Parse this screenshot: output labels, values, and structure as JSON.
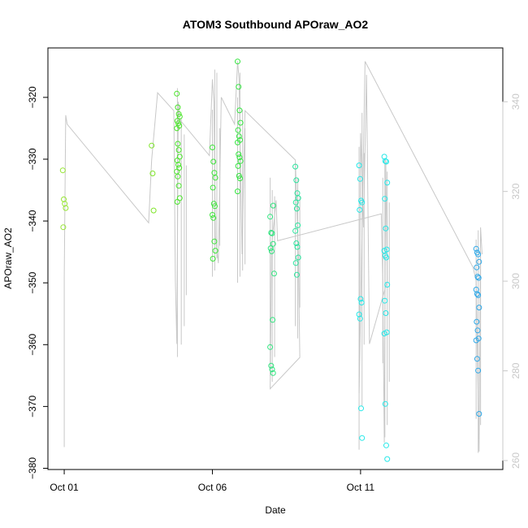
{
  "chart_data": {
    "type": "scatter",
    "title": "ATOM3 Southbound APOraw_AO2",
    "xlabel": "Date",
    "ylabel": "APOraw_AO2",
    "x_ticks": [
      {
        "day": 1,
        "label": "Oct 01"
      },
      {
        "day": 6,
        "label": "Oct 06"
      },
      {
        "day": 11,
        "label": "Oct 11"
      }
    ],
    "xlim_days": [
      0.45,
      15.8
    ],
    "y_left": {
      "lim": [
        -380.2,
        -312
      ],
      "ticks": [
        -380,
        -370,
        -360,
        -350,
        -340,
        -330,
        -320
      ]
    },
    "y_right": {
      "lim": [
        258,
        352
      ],
      "ticks": [
        260,
        280,
        300,
        320,
        340
      ]
    },
    "grid": false,
    "legend": "none",
    "colors": {
      "line": "#c8c8c8",
      "axis": "#000000",
      "right_axis": "#c8c8c8",
      "points": [
        "#96e632",
        "#7fe52a",
        "#4ae52a",
        "#2fe550",
        "#2fe57e",
        "#2be59e",
        "#1ee6c8",
        "#26e8e8",
        "#2ea8e8"
      ]
    },
    "point_groups": [
      {
        "x": 1.0,
        "color": "#96e632",
        "y": [
          -331.8,
          -336.5,
          -337.2,
          -337.9,
          -341.0
        ]
      },
      {
        "x": 4.0,
        "color": "#7fe52a",
        "y": [
          -327.8,
          -332.3,
          -338.3
        ]
      },
      {
        "x": 4.85,
        "color": "#4ae52a",
        "y": [
          -319.4,
          -321.6,
          -322.7,
          -323.1,
          -323.8,
          -324.2,
          -324.6,
          -325.0,
          -327.5,
          -328.5,
          -329.6,
          -330.2,
          -330.9,
          -331.4,
          -332.0,
          -332.8,
          -334.3,
          -336.3,
          -336.9
        ]
      },
      {
        "x": 6.05,
        "color": "#3ee53a",
        "y": [
          -328.1,
          -330.4,
          -332.2,
          -333.0,
          -334.6,
          -337.2,
          -337.6,
          -339.0,
          -339.5,
          -343.3,
          -344.8,
          -346.1
        ]
      },
      {
        "x": 6.9,
        "color": "#35e540",
        "y": [
          -314.2,
          -318.3,
          -322.1,
          -324.1,
          -325.3,
          -326.3,
          -326.9,
          -327.3,
          -329.2,
          -329.7,
          -330.3,
          -331.1,
          -332.7,
          -333.1,
          -335.2
        ]
      },
      {
        "x": 8.0,
        "color": "#2fe57e",
        "y": [
          -339.3,
          -341.9,
          -342.0,
          -343.7,
          -344.4,
          -344.9,
          -356.0,
          -360.4,
          -363.4,
          -364.0,
          -364.6
        ]
      },
      {
        "x": 8.1,
        "color": "#2fe57e",
        "y": [
          -337.5,
          -348.5
        ]
      },
      {
        "x": 8.85,
        "color": "#2be59e",
        "y": [
          -331.2,
          -333.4,
          -335.5,
          -336.3,
          -337.0,
          -338.0,
          -340.7,
          -341.6,
          -343.6,
          -344.2,
          -345.9,
          -346.8,
          -348.7
        ]
      },
      {
        "x": 11.0,
        "color": "#26e8e8",
        "y": [
          -331.0,
          -333.2,
          -336.7,
          -337.0,
          -338.2,
          -352.6,
          -353.2,
          -355.1,
          -355.8,
          -370.3,
          -375.1
        ]
      },
      {
        "x": 11.85,
        "color": "#26e8e8",
        "y": [
          -329.6,
          -330.3,
          -330.4,
          -333.8,
          -336.4,
          -341.2,
          -344.6,
          -344.8,
          -345.6,
          -345.9,
          -350.3,
          -352.9,
          -354.9,
          -358.0,
          -358.2,
          -369.6,
          -376.3,
          -378.5
        ]
      },
      {
        "x": 14.95,
        "color": "#2ea8e8",
        "y": [
          -344.5,
          -345.1,
          -345.4,
          -346.6,
          -347.5,
          -349.0,
          -349.2,
          -351.1,
          -351.8,
          -352.0,
          -354.0,
          -356.3,
          -357.7,
          -359.0,
          -359.3,
          -362.3,
          -364.2,
          -371.2
        ]
      }
    ],
    "line_right_axis_path": [
      {
        "x": 1.0,
        "y": 263
      },
      {
        "x": 1.0,
        "y": 301
      },
      {
        "x": 1.05,
        "y": 337
      },
      {
        "x": 1.1,
        "y": 335
      },
      {
        "x": 3.85,
        "y": 313
      },
      {
        "x": 3.95,
        "y": 327
      },
      {
        "x": 4.15,
        "y": 342
      },
      {
        "x": 4.7,
        "y": 338
      },
      {
        "x": 4.75,
        "y": 300
      },
      {
        "x": 4.8,
        "y": 286
      },
      {
        "x": 4.85,
        "y": 340
      },
      {
        "x": 4.9,
        "y": 336
      },
      {
        "x": 5.9,
        "y": 328
      },
      {
        "x": 6.0,
        "y": 345
      },
      {
        "x": 6.05,
        "y": 340
      },
      {
        "x": 6.1,
        "y": 310
      },
      {
        "x": 6.2,
        "y": 304
      },
      {
        "x": 6.3,
        "y": 341
      },
      {
        "x": 6.75,
        "y": 335
      },
      {
        "x": 6.85,
        "y": 349
      },
      {
        "x": 6.9,
        "y": 345
      },
      {
        "x": 7.0,
        "y": 306
      },
      {
        "x": 7.1,
        "y": 338
      },
      {
        "x": 8.8,
        "y": 327
      },
      {
        "x": 8.9,
        "y": 306
      },
      {
        "x": 8.95,
        "y": 283
      },
      {
        "x": 7.95,
        "y": 276
      },
      {
        "x": 8.0,
        "y": 308
      },
      {
        "x": 8.15,
        "y": 318
      },
      {
        "x": 8.2,
        "y": 309
      },
      {
        "x": 11.7,
        "y": 315
      },
      {
        "x": 11.75,
        "y": 300
      },
      {
        "x": 11.8,
        "y": 264
      },
      {
        "x": 11.85,
        "y": 327
      },
      {
        "x": 11.9,
        "y": 300
      },
      {
        "x": 11.3,
        "y": 286
      },
      {
        "x": 11.2,
        "y": 346
      },
      {
        "x": 11.1,
        "y": 312
      },
      {
        "x": 11.0,
        "y": 333
      },
      {
        "x": 10.95,
        "y": 275
      },
      {
        "x": 11.15,
        "y": 349
      },
      {
        "x": 14.8,
        "y": 303
      },
      {
        "x": 14.9,
        "y": 300
      },
      {
        "x": 15.0,
        "y": 262
      },
      {
        "x": 15.05,
        "y": 312
      },
      {
        "x": 15.1,
        "y": 306
      }
    ],
    "line_spike_ranges": [
      {
        "x": 4.82,
        "y": [
          -362.0,
          -318.5
        ]
      },
      {
        "x": 4.95,
        "y": [
          -360.0,
          -323.5
        ]
      },
      {
        "x": 5.05,
        "y": [
          -357.0,
          -326.0
        ]
      },
      {
        "x": 5.12,
        "y": [
          -352.0,
          -331.0
        ]
      },
      {
        "x": 6.0,
        "y": [
          -349.0,
          -322.0
        ]
      },
      {
        "x": 6.08,
        "y": [
          -348.0,
          -315.5
        ]
      },
      {
        "x": 6.15,
        "y": [
          -346.0,
          -316.0
        ]
      },
      {
        "x": 6.25,
        "y": [
          -344.0,
          -325.0
        ]
      },
      {
        "x": 6.85,
        "y": [
          -350.0,
          -320.0
        ]
      },
      {
        "x": 6.93,
        "y": [
          -349.0,
          -316.0
        ]
      },
      {
        "x": 7.02,
        "y": [
          -348.0,
          -322.0
        ]
      },
      {
        "x": 7.1,
        "y": [
          -347.0,
          -325.0
        ]
      },
      {
        "x": 7.95,
        "y": [
          -365.0,
          -333.0
        ]
      },
      {
        "x": 8.02,
        "y": [
          -366.0,
          -335.0
        ]
      },
      {
        "x": 8.1,
        "y": [
          -362.0,
          -336.0
        ]
      },
      {
        "x": 8.8,
        "y": [
          -357.0,
          -330.5
        ]
      },
      {
        "x": 8.88,
        "y": [
          -359.0,
          -333.0
        ]
      },
      {
        "x": 8.95,
        "y": [
          -354.0,
          -336.0
        ]
      },
      {
        "x": 10.95,
        "y": [
          -377.0,
          -328.0
        ]
      },
      {
        "x": 11.05,
        "y": [
          -370.0,
          -322.5
        ]
      },
      {
        "x": 11.12,
        "y": [
          -360.0,
          -329.0
        ]
      },
      {
        "x": 11.75,
        "y": [
          -363.0,
          -333.0
        ]
      },
      {
        "x": 11.82,
        "y": [
          -375.0,
          -330.0
        ]
      },
      {
        "x": 11.9,
        "y": [
          -373.0,
          -332.0
        ]
      },
      {
        "x": 11.97,
        "y": [
          -366.0,
          -337.0
        ]
      },
      {
        "x": 14.9,
        "y": [
          -372.0,
          -343.0
        ]
      },
      {
        "x": 14.97,
        "y": [
          -377.5,
          -341.5
        ]
      },
      {
        "x": 15.05,
        "y": [
          -373.0,
          -345.0
        ]
      }
    ]
  }
}
